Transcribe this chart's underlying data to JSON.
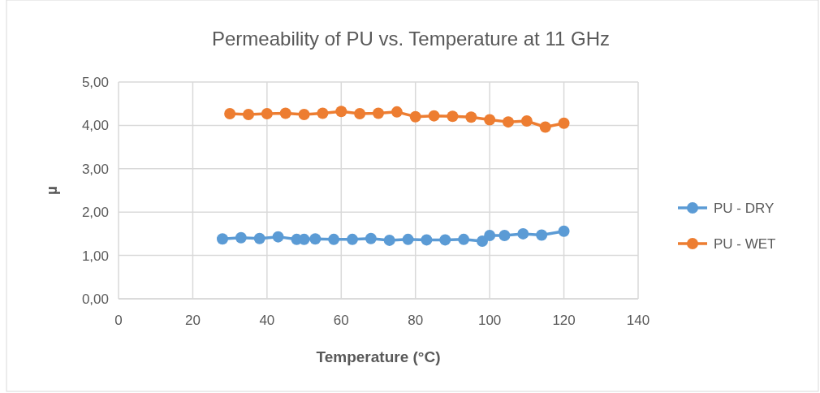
{
  "chart_data": {
    "type": "line",
    "title": "Permeability of PU vs. Temperature at 11 GHz",
    "xlabel": "Temperature (°C)",
    "ylabel": "µ",
    "xlim": [
      0,
      140
    ],
    "xticks": [
      0,
      20,
      40,
      60,
      80,
      100,
      120,
      140
    ],
    "ylim": [
      0,
      5
    ],
    "yticks": [
      {
        "value": 0,
        "label": "0,00"
      },
      {
        "value": 1,
        "label": "1,00"
      },
      {
        "value": 2,
        "label": "2,00"
      },
      {
        "value": 3,
        "label": "3,00"
      },
      {
        "value": 4,
        "label": "4,00"
      },
      {
        "value": 5,
        "label": "5,00"
      }
    ],
    "grid": true,
    "legend": "right",
    "marker": "circle",
    "line_style": "solid",
    "series": [
      {
        "name": "PU - DRY",
        "color": "#5b9bd5",
        "x": [
          28,
          33,
          38,
          43,
          48,
          50,
          53,
          58,
          63,
          68,
          73,
          78,
          83,
          88,
          93,
          98,
          100,
          104,
          109,
          114,
          120
        ],
        "values": [
          1.38,
          1.41,
          1.39,
          1.43,
          1.37,
          1.37,
          1.38,
          1.37,
          1.37,
          1.39,
          1.35,
          1.37,
          1.36,
          1.36,
          1.37,
          1.33,
          1.46,
          1.46,
          1.5,
          1.47,
          1.56
        ]
      },
      {
        "name": "PU - WET",
        "color": "#ed7d31",
        "x": [
          30,
          35,
          40,
          45,
          50,
          55,
          60,
          65,
          70,
          75,
          80,
          85,
          90,
          95,
          100,
          105,
          110,
          115,
          120
        ],
        "values": [
          4.27,
          4.25,
          4.27,
          4.28,
          4.25,
          4.28,
          4.32,
          4.27,
          4.28,
          4.31,
          4.2,
          4.22,
          4.21,
          4.19,
          4.13,
          4.08,
          4.1,
          3.96,
          4.05
        ]
      }
    ]
  }
}
